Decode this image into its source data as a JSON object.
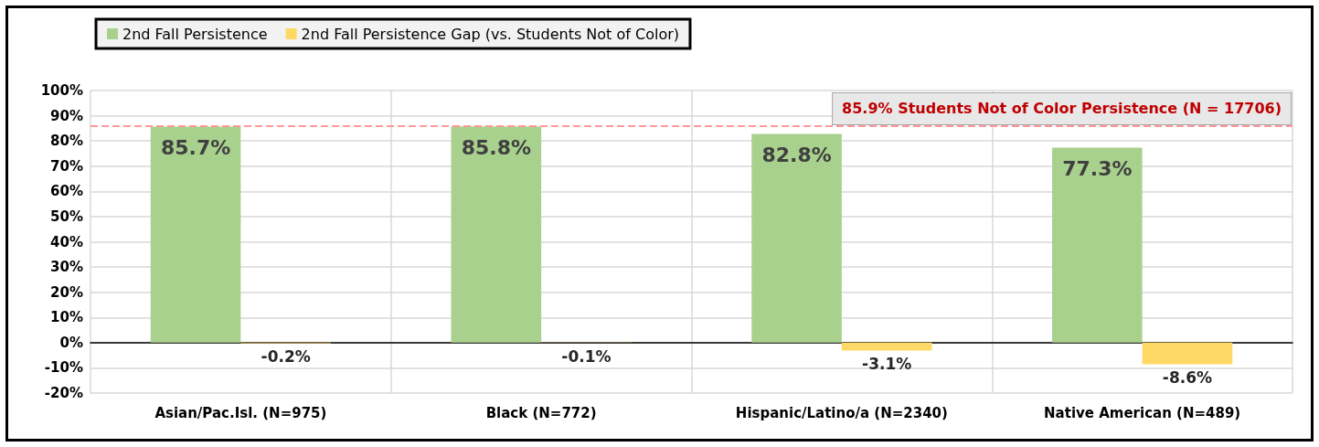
{
  "chart_data": {
    "type": "bar",
    "categories": [
      "Asian/Pac.Isl. (N=975)",
      "Black (N=772)",
      "Hispanic/Latino/a (N=2340)",
      "Native American (N=489)"
    ],
    "series": [
      {
        "name": "2nd Fall Persistence",
        "color": "#a9d18e",
        "values": [
          85.7,
          85.8,
          82.8,
          77.3
        ],
        "value_labels": [
          "85.7%",
          "85.8%",
          "82.8%",
          "77.3%"
        ]
      },
      {
        "name": "2nd Fall Persistence Gap (vs. Students Not of Color)",
        "color": "#ffd966",
        "values": [
          -0.2,
          -0.1,
          -3.1,
          -8.6
        ],
        "value_labels": [
          "-0.2%",
          "-0.1%",
          "-3.1%",
          "-8.6%"
        ]
      }
    ],
    "ylim": [
      -20,
      100
    ],
    "yticks": [
      {
        "value": -20,
        "label": "-20%"
      },
      {
        "value": -10,
        "label": "-10%"
      },
      {
        "value": 0,
        "label": "0%"
      },
      {
        "value": 10,
        "label": "10%"
      },
      {
        "value": 20,
        "label": "20%"
      },
      {
        "value": 30,
        "label": "30%"
      },
      {
        "value": 40,
        "label": "40%"
      },
      {
        "value": 50,
        "label": "50%"
      },
      {
        "value": 60,
        "label": "60%"
      },
      {
        "value": 70,
        "label": "70%"
      },
      {
        "value": 80,
        "label": "80%"
      },
      {
        "value": 90,
        "label": "90%"
      },
      {
        "value": 100,
        "label": "100%"
      }
    ],
    "ref_lines": [
      {
        "axis": "y",
        "value": 85.9,
        "label": "85.9% Students Not of Color Persistence (N = 17706)",
        "color": "#ff9999",
        "line_style": "dashed"
      }
    ],
    "grid": true,
    "legend": "top left"
  }
}
